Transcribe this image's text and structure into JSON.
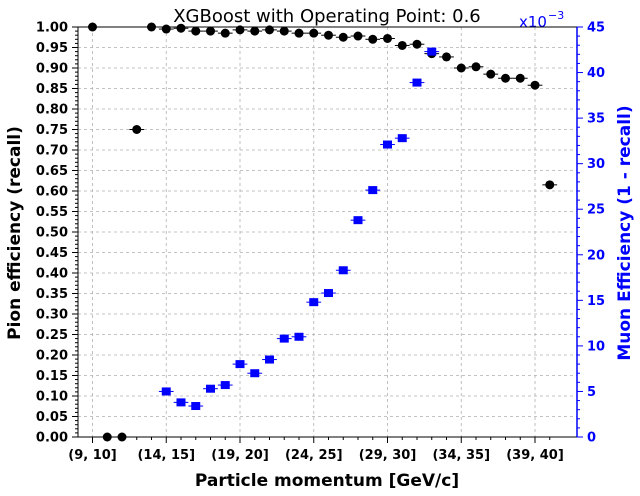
{
  "chart_data": {
    "type": "scatter",
    "title": "XGBoost with Operating Point: 0.6",
    "xlabel": "Particle momentum [GeV/c]",
    "ylabel_left": "Pion efficiency (recall)",
    "ylabel_right": "Muon Efficiency (1 - recall)",
    "right_axis_scale_label": "x10",
    "right_axis_scale_exponent": "−3",
    "categories": [
      "[9, 10]",
      "[10, 11]",
      "[11, 12]",
      "[12, 13]",
      "[13, 14]",
      "[14, 15]",
      "[15, 16]",
      "[16, 17]",
      "[17, 18]",
      "[18, 19]",
      "[19, 20]",
      "[20, 21]",
      "[21, 22]",
      "[22, 23]",
      "[23, 24]",
      "[24, 25]",
      "[25, 26]",
      "[26, 27]",
      "[27, 28]",
      "[28, 29]",
      "[29, 30]",
      "[30, 31]",
      "[31, 32]",
      "[32, 33]",
      "[33, 34]",
      "[34, 35]",
      "[35, 36]",
      "[36, 37]",
      "[37, 38]",
      "[38, 39]",
      "[39, 40]",
      "[40, 41]"
    ],
    "x_tick_labels": [
      "(9, 10]",
      "(14, 15]",
      "(19, 20]",
      "(24, 25]",
      "(29, 30]",
      "(34, 35]",
      "(39, 40]"
    ],
    "x_tick_indices": [
      0,
      5,
      10,
      15,
      20,
      25,
      30
    ],
    "left_ylim": [
      0,
      1
    ],
    "left_yticks": [
      "0.00",
      "0.05",
      "0.10",
      "0.15",
      "0.20",
      "0.25",
      "0.30",
      "0.35",
      "0.40",
      "0.45",
      "0.50",
      "0.55",
      "0.60",
      "0.65",
      "0.70",
      "0.75",
      "0.80",
      "0.85",
      "0.90",
      "0.95",
      "1.00"
    ],
    "right_ylim": [
      0,
      45
    ],
    "right_yticks": [
      "0",
      "5",
      "10",
      "15",
      "20",
      "25",
      "30",
      "35",
      "40",
      "45"
    ],
    "grid": true,
    "series": [
      {
        "axis": "left",
        "color": "#000000",
        "marker": "circle",
        "values": [
          1.0,
          0.0,
          0.0,
          0.75,
          1.0,
          0.995,
          0.997,
          0.99,
          0.99,
          0.985,
          0.993,
          0.99,
          0.993,
          0.99,
          0.985,
          0.985,
          0.98,
          0.975,
          0.978,
          0.97,
          0.972,
          0.955,
          0.958,
          0.935,
          0.927,
          0.9,
          0.903,
          0.885,
          0.875,
          0.875,
          0.858,
          0.615
        ]
      },
      {
        "axis": "right",
        "color": "#0000ff",
        "marker": "square",
        "values": [
          null,
          null,
          null,
          null,
          null,
          5.0,
          3.8,
          3.4,
          5.3,
          5.7,
          8.0,
          7.0,
          8.5,
          10.8,
          11.0,
          14.8,
          15.8,
          18.3,
          23.8,
          27.1,
          32.1,
          32.8,
          38.9,
          42.3,
          null,
          null,
          null,
          null,
          null,
          null,
          null,
          null
        ]
      }
    ]
  }
}
